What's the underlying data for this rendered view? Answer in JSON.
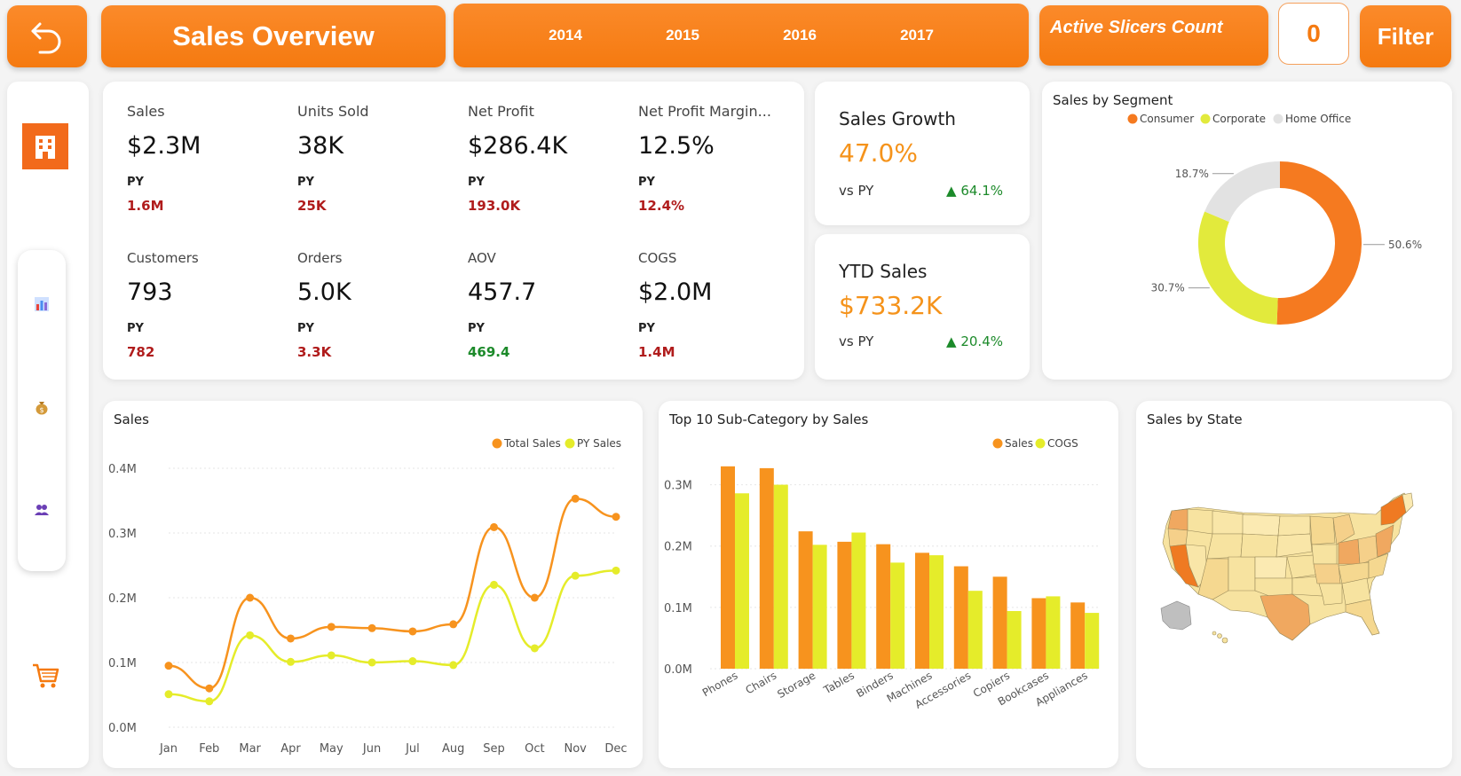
{
  "header": {
    "title": "Sales Overview",
    "years": [
      "2014",
      "2015",
      "2016",
      "2017"
    ],
    "slicers_label": "Active Slicers Count",
    "slicers_count": "0",
    "filter_label": "Filter"
  },
  "sidebar": {
    "items": [
      {
        "icon": "building-icon"
      },
      {
        "icon": "bar-chart-icon"
      },
      {
        "icon": "money-bag-icon"
      },
      {
        "icon": "users-icon"
      },
      {
        "icon": "cart-icon"
      }
    ]
  },
  "kpis": [
    {
      "label": "Sales",
      "value": "$2.3M",
      "py_label": "PY",
      "py_value": "1.6M",
      "py_color": "red"
    },
    {
      "label": "Units Sold",
      "value": "38K",
      "py_label": "PY",
      "py_value": "25K",
      "py_color": "red"
    },
    {
      "label": "Net Profit",
      "value": "$286.4K",
      "py_label": "PY",
      "py_value": "193.0K",
      "py_color": "red"
    },
    {
      "label": "Net Profit Margin...",
      "value": "12.5%",
      "py_label": "PY",
      "py_value": "12.4%",
      "py_color": "red"
    },
    {
      "label": "Customers",
      "value": "793",
      "py_label": "PY",
      "py_value": "782",
      "py_color": "red"
    },
    {
      "label": "Orders",
      "value": "5.0K",
      "py_label": "PY",
      "py_value": "3.3K",
      "py_color": "red"
    },
    {
      "label": "AOV",
      "value": "457.7",
      "py_label": "PY",
      "py_value": "469.4",
      "py_color": "green"
    },
    {
      "label": "COGS",
      "value": "$2.0M",
      "py_label": "PY",
      "py_value": "1.4M",
      "py_color": "red"
    }
  ],
  "growth": {
    "label": "Sales Growth",
    "value": "47.0%",
    "vs": "vs PY",
    "delta": "▲ 64.1%"
  },
  "ytd": {
    "label": "YTD Sales",
    "value": "$733.2K",
    "vs": "vs PY",
    "delta": "▲ 20.4%"
  },
  "colors": {
    "orange": "#f7931e",
    "yellow": "#e5ec2a",
    "grey": "#e2e2e2",
    "accent": "#f57a10"
  },
  "chart_data": [
    {
      "type": "pie",
      "title": "Sales by Segment",
      "categories": [
        "Consumer",
        "Corporate",
        "Home Office"
      ],
      "values": [
        50.6,
        30.7,
        18.7
      ],
      "labels": [
        "50.6%",
        "30.7%",
        "18.7%"
      ],
      "colors": [
        "#f57a20",
        "#e2ea3c",
        "#e2e2e2"
      ],
      "legend": "top"
    },
    {
      "type": "line",
      "title": "Sales",
      "x": [
        "Jan",
        "Feb",
        "Mar",
        "Apr",
        "May",
        "Jun",
        "Jul",
        "Aug",
        "Sep",
        "Oct",
        "Nov",
        "Dec"
      ],
      "series": [
        {
          "name": "Total Sales",
          "color": "#f7931e",
          "values": [
            0.095,
            0.06,
            0.2,
            0.137,
            0.155,
            0.153,
            0.148,
            0.159,
            0.309,
            0.2,
            0.353,
            0.325
          ]
        },
        {
          "name": "PY Sales",
          "color": "#e5ec2a",
          "values": [
            0.051,
            0.04,
            0.142,
            0.101,
            0.111,
            0.1,
            0.102,
            0.096,
            0.22,
            0.122,
            0.234,
            0.242
          ]
        }
      ],
      "ylim": [
        0,
        0.4
      ],
      "yticks": [
        "0.0M",
        "0.1M",
        "0.2M",
        "0.3M",
        "0.4M"
      ],
      "legend": "top-right"
    },
    {
      "type": "bar",
      "title": "Top 10 Sub-Category by Sales",
      "categories": [
        "Phones",
        "Chairs",
        "Storage",
        "Tables",
        "Binders",
        "Machines",
        "Accessories",
        "Copiers",
        "Bookcases",
        "Appliances"
      ],
      "series": [
        {
          "name": "Sales",
          "color": "#f7931e",
          "values": [
            0.33,
            0.327,
            0.224,
            0.207,
            0.203,
            0.189,
            0.167,
            0.15,
            0.115,
            0.108
          ]
        },
        {
          "name": "COGS",
          "color": "#e5ec2a",
          "values": [
            0.286,
            0.3,
            0.202,
            0.222,
            0.173,
            0.185,
            0.127,
            0.094,
            0.118,
            0.091
          ]
        }
      ],
      "ylim": [
        0,
        0.35
      ],
      "yticks": [
        "0.0M",
        "0.1M",
        "0.2M",
        "0.3M"
      ],
      "legend": "top-right"
    }
  ],
  "map": {
    "title": "Sales by State"
  }
}
